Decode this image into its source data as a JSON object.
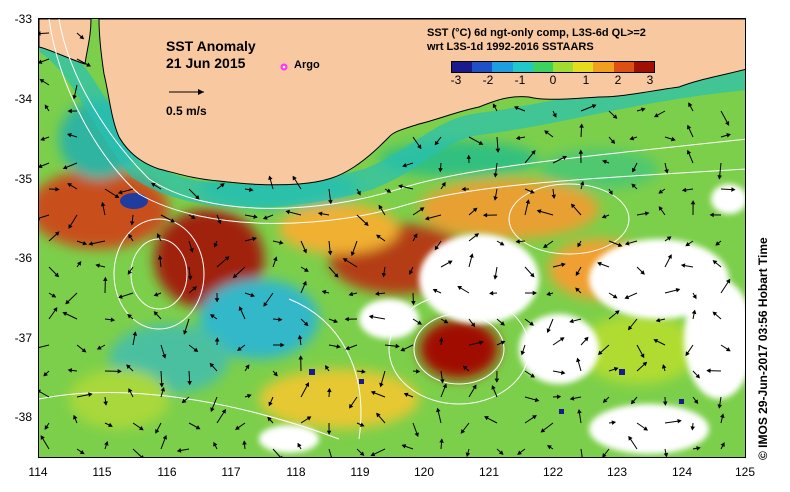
{
  "map": {
    "title": "SST Anomaly",
    "date": "21 Jun 2015",
    "argo_label": "Argo",
    "scale_label": "0.5 m/s",
    "caption_line1": "SST (°C) 6d ngt-only comp, L3S-6d QL>=2",
    "caption_line2": "wrt L3S-1d 1992-2016 SSTAARS",
    "credit": "© IMOS 29-Jun-2017 03:56 Hobart Time",
    "y_ticks": [
      "-33",
      "-34",
      "-35",
      "-36",
      "-37",
      "-38"
    ],
    "x_ticks": [
      "114",
      "115",
      "116",
      "117",
      "118",
      "119",
      "120",
      "121",
      "122",
      "123",
      "124",
      "125"
    ],
    "colorbar": {
      "labels": [
        "-3",
        "-2",
        "-1",
        "0",
        "1",
        "2",
        "3"
      ],
      "colors": [
        "#1a1a8c",
        "#1f50c8",
        "#1e9ee0",
        "#22c8c8",
        "#3cd260",
        "#a0dc32",
        "#e6dc1e",
        "#f0a01e",
        "#dc5014",
        "#a01000"
      ]
    },
    "colors": {
      "land": "#f8c8a0",
      "argo": "#ff33ff",
      "missing": "#ffffff",
      "contour": "#ffffff",
      "vector": "#000000"
    }
  }
}
